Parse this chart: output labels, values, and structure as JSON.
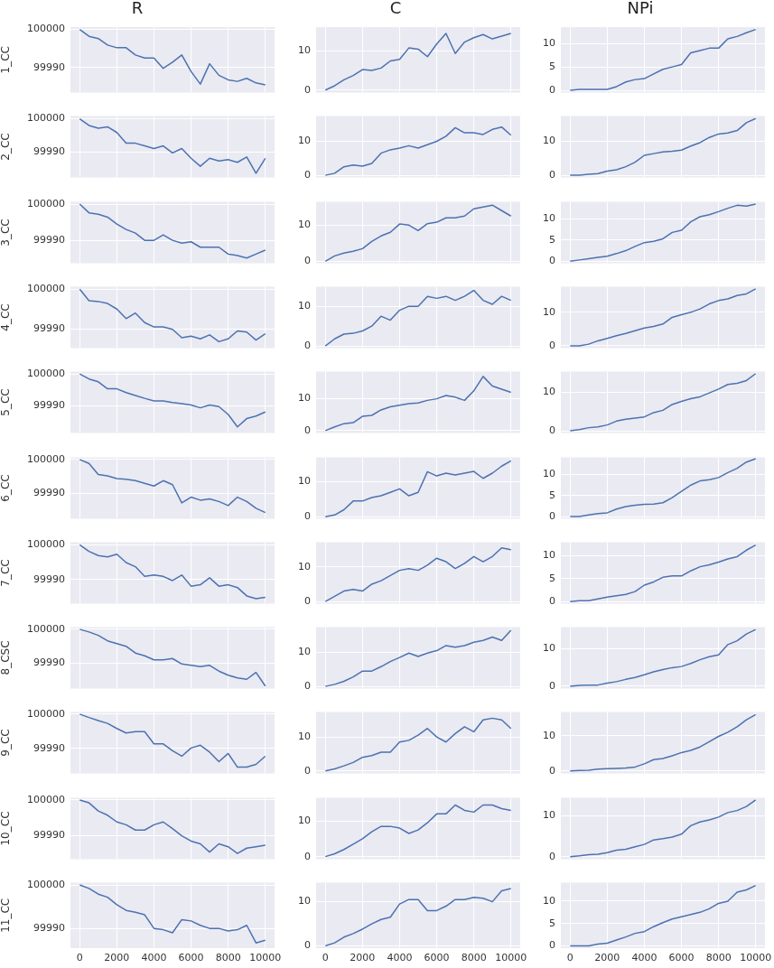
{
  "chart_data": [
    {
      "type": "line",
      "title": "R",
      "ylabel": "1_CC",
      "color": "#4c72b0",
      "x": [
        0,
        500,
        1000,
        1500,
        2000,
        2500,
        3000,
        3500,
        4000,
        4500,
        5000,
        5500,
        6000,
        6500,
        7000,
        7500,
        8000,
        8500,
        9000,
        9500,
        10000
      ],
      "values": [
        100000,
        99998.2,
        99997.6,
        99995.9,
        99995.2,
        99995.2,
        99993.3,
        99992.5,
        99992.5,
        99989.8,
        99991.4,
        99993.3,
        99989,
        99985.7,
        99991,
        99988,
        99986.8,
        99986.4,
        99987.2,
        99986,
        99985.5
      ],
      "xlim": [
        -500,
        10500
      ],
      "xticks": [
        0,
        2000,
        4000,
        6000,
        8000,
        10000
      ],
      "ylim": [
        99983.5,
        100000.6
      ],
      "yticks": [
        99990,
        100000
      ],
      "grid": true,
      "tick_labels": "y"
    },
    {
      "type": "line",
      "title": "C",
      "color": "#4c72b0",
      "x": [
        0,
        500,
        1000,
        1500,
        2000,
        2500,
        3000,
        3500,
        4000,
        4500,
        5000,
        5500,
        6000,
        6500,
        7000,
        7500,
        8000,
        8500,
        9000,
        9500,
        10000
      ],
      "values": [
        0,
        1.1,
        2.6,
        3.7,
        5.2,
        5,
        5.6,
        7.4,
        7.8,
        10.7,
        10.4,
        8.5,
        11.7,
        14.4,
        9.3,
        12.2,
        13.3,
        14.1,
        13,
        13.7,
        14.4
      ],
      "xlim": [
        -500,
        10500
      ],
      "xticks": [
        0,
        2000,
        4000,
        6000,
        8000,
        10000
      ],
      "ylim": [
        -0.6,
        16
      ],
      "yticks": [
        0,
        10
      ],
      "grid": true,
      "tick_labels": "y"
    },
    {
      "type": "line",
      "title": "NPi",
      "color": "#4c72b0",
      "x": [
        0,
        500,
        1000,
        1500,
        2000,
        2500,
        3000,
        3500,
        4000,
        4500,
        5000,
        5500,
        6000,
        6500,
        7000,
        7500,
        8000,
        8500,
        9000,
        9500,
        10000
      ],
      "values": [
        0,
        0.2,
        0.2,
        0.2,
        0.2,
        0.8,
        1.8,
        2.3,
        2.5,
        3.5,
        4.5,
        5,
        5.5,
        8,
        8.5,
        9,
        9,
        11,
        11.5,
        12.3,
        13
      ],
      "xlim": [
        -500,
        10500
      ],
      "xticks": [
        0,
        2000,
        4000,
        6000,
        8000,
        10000
      ],
      "ylim": [
        -0.45,
        13.5
      ],
      "yticks": [
        0,
        5,
        10
      ],
      "grid": true,
      "tick_labels": "y"
    },
    {
      "type": "line",
      "ylabel": "2_CC",
      "color": "#4c72b0",
      "x": [
        0,
        500,
        1000,
        1500,
        2000,
        2500,
        3000,
        3500,
        4000,
        4500,
        5000,
        5500,
        6000,
        6500,
        7000,
        7500,
        8000,
        8500,
        9000,
        9500,
        10000
      ],
      "values": [
        100000,
        99998,
        99997.2,
        99997.6,
        99995.9,
        99992.7,
        99992.7,
        99991.9,
        99991.1,
        99991.9,
        99989.8,
        99991.1,
        99988.2,
        99985.8,
        99988.2,
        99987.4,
        99987.8,
        99987,
        99988.6,
        99983.7,
        99988.2
      ],
      "xlim": [
        -500,
        10500
      ],
      "xticks": [
        0,
        2000,
        4000,
        6000,
        8000,
        10000
      ],
      "ylim": [
        99982.5,
        100000.8
      ],
      "yticks": [
        99990,
        100000
      ],
      "grid": true,
      "tick_labels": "y"
    },
    {
      "type": "line",
      "color": "#4c72b0",
      "x": [
        0,
        500,
        1000,
        1500,
        2000,
        2500,
        3000,
        3500,
        4000,
        4500,
        5000,
        5500,
        6000,
        6500,
        7000,
        7500,
        8000,
        8500,
        9000,
        9500,
        10000
      ],
      "values": [
        0,
        0.6,
        2.5,
        3,
        2.7,
        3.5,
        6.5,
        7.5,
        8,
        8.7,
        8,
        9,
        10,
        11.5,
        14,
        12.5,
        12.5,
        12,
        13.5,
        14.2,
        11.8
      ],
      "xlim": [
        -500,
        10500
      ],
      "xticks": [
        0,
        2000,
        4000,
        6000,
        8000,
        10000
      ],
      "ylim": [
        -0.6,
        17.4
      ],
      "yticks": [
        0,
        10
      ],
      "grid": true,
      "tick_labels": "y"
    },
    {
      "type": "line",
      "color": "#4c72b0",
      "x": [
        0,
        500,
        1000,
        1500,
        2000,
        2500,
        3000,
        3500,
        4000,
        4500,
        5000,
        5500,
        6000,
        6500,
        7000,
        7500,
        8000,
        8500,
        9000,
        9500,
        10000
      ],
      "values": [
        0,
        0,
        0.3,
        0.5,
        1.2,
        1.6,
        2.5,
        3.8,
        5.8,
        6.3,
        6.8,
        7,
        7.3,
        8.5,
        9.5,
        11,
        12,
        12.3,
        13,
        15.3,
        16.5
      ],
      "xlim": [
        -500,
        10500
      ],
      "xticks": [
        0,
        2000,
        4000,
        6000,
        8000,
        10000
      ],
      "ylim": [
        -0.6,
        17.2
      ],
      "yticks": [
        0,
        10
      ],
      "grid": true,
      "tick_labels": "y"
    },
    {
      "type": "line",
      "ylabel": "3_CC",
      "color": "#4c72b0",
      "x": [
        0,
        500,
        1000,
        1500,
        2000,
        2500,
        3000,
        3500,
        4000,
        4500,
        5000,
        5500,
        6000,
        6500,
        7000,
        7500,
        8000,
        8500,
        9000,
        9500,
        10000
      ],
      "values": [
        100000,
        99997.6,
        99997.2,
        99996.4,
        99994.5,
        99993,
        99992,
        99990,
        99990,
        99991.5,
        99990,
        99989.2,
        99989.6,
        99988.1,
        99988.1,
        99988.1,
        99986.2,
        99985.8,
        99985.1,
        99986.2,
        99987.3
      ],
      "xlim": [
        -500,
        10500
      ],
      "xticks": [
        0,
        2000,
        4000,
        6000,
        8000,
        10000
      ],
      "ylim": [
        99983.7,
        100000.6
      ],
      "yticks": [
        99990,
        100000
      ],
      "grid": true,
      "tick_labels": "y"
    },
    {
      "type": "line",
      "color": "#4c72b0",
      "x": [
        0,
        500,
        1000,
        1500,
        2000,
        2500,
        3000,
        3500,
        4000,
        4500,
        5000,
        5500,
        6000,
        6500,
        7000,
        7500,
        8000,
        8500,
        9000,
        9500,
        10000
      ],
      "values": [
        0,
        1.5,
        2.3,
        2.8,
        3.5,
        5.5,
        7,
        8,
        10.3,
        10,
        8.5,
        10.4,
        10.8,
        12,
        12,
        12.5,
        14.5,
        15,
        15.5,
        14,
        12.5
      ],
      "xlim": [
        -500,
        10500
      ],
      "xticks": [
        0,
        2000,
        4000,
        6000,
        8000,
        10000
      ],
      "ylim": [
        -0.5,
        16.4
      ],
      "yticks": [
        0,
        10
      ],
      "grid": true,
      "tick_labels": "y"
    },
    {
      "type": "line",
      "color": "#4c72b0",
      "x": [
        0,
        500,
        1000,
        1500,
        2000,
        2500,
        3000,
        3500,
        4000,
        4500,
        5000,
        5500,
        6000,
        6500,
        7000,
        7500,
        8000,
        8500,
        9000,
        9500,
        10000
      ],
      "values": [
        0,
        0.3,
        0.6,
        0.9,
        1.2,
        1.8,
        2.5,
        3.5,
        4.4,
        4.7,
        5.3,
        6.8,
        7.3,
        9.3,
        10.5,
        11,
        11.7,
        12.5,
        13.2,
        13,
        13.5
      ],
      "xlim": [
        -500,
        10500
      ],
      "xticks": [
        0,
        2000,
        4000,
        6000,
        8000,
        10000
      ],
      "ylim": [
        -0.45,
        14
      ],
      "yticks": [
        0,
        5,
        10
      ],
      "grid": true,
      "tick_labels": "y"
    },
    {
      "type": "line",
      "ylabel": "4_CC",
      "color": "#4c72b0",
      "x": [
        0,
        500,
        1000,
        1500,
        2000,
        2500,
        3000,
        3500,
        4000,
        4500,
        5000,
        5500,
        6000,
        6500,
        7000,
        7500,
        8000,
        8500,
        9000,
        9500,
        10000
      ],
      "values": [
        100000,
        99997.1,
        99996.9,
        99996.4,
        99995,
        99992.6,
        99994,
        99991.6,
        99990.5,
        99990.5,
        99989.9,
        99987.8,
        99988.2,
        99987.5,
        99988.5,
        99986.8,
        99987.5,
        99989.5,
        99989.2,
        99987.2,
        99988.8
      ],
      "xlim": [
        -500,
        10500
      ],
      "xticks": [
        0,
        2000,
        4000,
        6000,
        8000,
        10000
      ],
      "ylim": [
        99985.2,
        100000.6
      ],
      "yticks": [
        99990,
        100000
      ],
      "grid": true,
      "tick_labels": "y"
    },
    {
      "type": "line",
      "color": "#4c72b0",
      "x": [
        0,
        500,
        1000,
        1500,
        2000,
        2500,
        3000,
        3500,
        4000,
        4500,
        5000,
        5500,
        6000,
        6500,
        7000,
        7500,
        8000,
        8500,
        9000,
        9500,
        10000
      ],
      "values": [
        0,
        1.8,
        3,
        3.2,
        3.8,
        5,
        7.5,
        6.5,
        9,
        10,
        10,
        12.5,
        12,
        12.5,
        11.5,
        12.5,
        14,
        11.5,
        10.5,
        12.5,
        11.5
      ],
      "xlim": [
        -500,
        10500
      ],
      "xticks": [
        0,
        2000,
        4000,
        6000,
        8000,
        10000
      ],
      "ylim": [
        -0.5,
        14.9
      ],
      "yticks": [
        0,
        10
      ],
      "grid": true,
      "tick_labels": "y"
    },
    {
      "type": "line",
      "color": "#4c72b0",
      "x": [
        0,
        500,
        1000,
        1500,
        2000,
        2500,
        3000,
        3500,
        4000,
        4500,
        5000,
        5500,
        6000,
        6500,
        7000,
        7500,
        8000,
        8500,
        9000,
        9500,
        10000
      ],
      "values": [
        0,
        0,
        0.5,
        1.5,
        2.2,
        3,
        3.7,
        4.5,
        5.3,
        5.8,
        6.5,
        8.5,
        9.3,
        10,
        11,
        12.5,
        13.5,
        14,
        15,
        15.5,
        17
      ],
      "xlim": [
        -500,
        10500
      ],
      "xticks": [
        0,
        2000,
        4000,
        6000,
        8000,
        10000
      ],
      "ylim": [
        -0.65,
        17.6
      ],
      "yticks": [
        0,
        10
      ],
      "grid": true,
      "tick_labels": "y"
    },
    {
      "type": "line",
      "ylabel": "5_CC",
      "color": "#4c72b0",
      "x": [
        0,
        500,
        1000,
        1500,
        2000,
        2500,
        3000,
        3500,
        4000,
        4500,
        5000,
        5500,
        6000,
        6500,
        7000,
        7500,
        8000,
        8500,
        9000,
        9500,
        10000
      ],
      "values": [
        100000,
        99998.4,
        99997.5,
        99995.3,
        99995.3,
        99994.1,
        99993.2,
        99992.3,
        99991.5,
        99991.5,
        99991,
        99990.6,
        99990.2,
        99989.3,
        99990.2,
        99989.7,
        99987.2,
        99983.3,
        99985.9,
        99986.7,
        99988
      ],
      "xlim": [
        -500,
        10500
      ],
      "xticks": [
        0,
        2000,
        4000,
        6000,
        8000,
        10000
      ],
      "ylim": [
        99981.4,
        100000.7
      ],
      "yticks": [
        99990,
        100000
      ],
      "grid": true,
      "tick_labels": "y"
    },
    {
      "type": "line",
      "color": "#4c72b0",
      "x": [
        0,
        500,
        1000,
        1500,
        2000,
        2500,
        3000,
        3500,
        4000,
        4500,
        5000,
        5500,
        6000,
        6500,
        7000,
        7500,
        8000,
        8500,
        9000,
        9500,
        10000
      ],
      "values": [
        0,
        1.2,
        2.2,
        2.5,
        4.5,
        4.8,
        6.5,
        7.5,
        8,
        8.5,
        8.7,
        9.5,
        10,
        11,
        10.5,
        9.5,
        12.5,
        17,
        14,
        13,
        12
      ],
      "xlim": [
        -500,
        10500
      ],
      "xticks": [
        0,
        2000,
        4000,
        6000,
        8000,
        10000
      ],
      "ylim": [
        -0.7,
        18.5
      ],
      "yticks": [
        0,
        10
      ],
      "grid": true,
      "tick_labels": "y"
    },
    {
      "type": "line",
      "color": "#4c72b0",
      "x": [
        0,
        500,
        1000,
        1500,
        2000,
        2500,
        3000,
        3500,
        4000,
        4500,
        5000,
        5500,
        6000,
        6500,
        7000,
        7500,
        8000,
        8500,
        9000,
        9500,
        10000
      ],
      "values": [
        0,
        0.3,
        0.8,
        1,
        1.5,
        2.5,
        3,
        3.3,
        3.6,
        4.7,
        5.3,
        6.8,
        7.6,
        8.3,
        8.8,
        9.8,
        10.8,
        12,
        12.3,
        13,
        14.8
      ],
      "xlim": [
        -500,
        10500
      ],
      "xticks": [
        0,
        2000,
        4000,
        6000,
        8000,
        10000
      ],
      "ylim": [
        -0.55,
        15.3
      ],
      "yticks": [
        0,
        10
      ],
      "grid": true,
      "tick_labels": "y"
    },
    {
      "type": "line",
      "ylabel": "6_CC",
      "color": "#4c72b0",
      "x": [
        0,
        500,
        1000,
        1500,
        2000,
        2500,
        3000,
        3500,
        4000,
        4500,
        5000,
        5500,
        6000,
        6500,
        7000,
        7500,
        8000,
        8500,
        9000,
        9500,
        10000
      ],
      "values": [
        100000,
        99998.8,
        99995.5,
        99995.1,
        99994.3,
        99994.1,
        99993.7,
        99992.9,
        99992.1,
        99993.7,
        99992.5,
        99987.1,
        99988.8,
        99987.9,
        99988.3,
        99987.5,
        99986.3,
        99988.8,
        99987.5,
        99985.5,
        99984.2
      ],
      "xlim": [
        -500,
        10500
      ],
      "xticks": [
        0,
        2000,
        4000,
        6000,
        8000,
        10000
      ],
      "ylim": [
        99982.4,
        100000.6
      ],
      "yticks": [
        99990,
        100000
      ],
      "grid": true,
      "tick_labels": "y"
    },
    {
      "type": "line",
      "color": "#4c72b0",
      "x": [
        0,
        500,
        1000,
        1500,
        2000,
        2500,
        3000,
        3500,
        4000,
        4500,
        5000,
        5500,
        6000,
        6500,
        7000,
        7500,
        8000,
        8500,
        9000,
        9500,
        10000
      ],
      "values": [
        0,
        0.5,
        2,
        4.5,
        4.5,
        5.5,
        6,
        7,
        8,
        6,
        7,
        12.9,
        11.7,
        12.5,
        12,
        12.5,
        13,
        11,
        12.5,
        14.5,
        16
      ],
      "xlim": [
        -500,
        10500
      ],
      "xticks": [
        0,
        2000,
        4000,
        6000,
        8000,
        10000
      ],
      "ylim": [
        -0.56,
        17
      ],
      "yticks": [
        0,
        10
      ],
      "grid": true,
      "tick_labels": "y"
    },
    {
      "type": "line",
      "color": "#4c72b0",
      "x": [
        0,
        500,
        1000,
        1500,
        2000,
        2500,
        3000,
        3500,
        4000,
        4500,
        5000,
        5500,
        6000,
        6500,
        7000,
        7500,
        8000,
        8500,
        9000,
        9500,
        10000
      ],
      "values": [
        0,
        0,
        0.4,
        0.7,
        0.9,
        1.8,
        2.4,
        2.7,
        2.9,
        3,
        3.3,
        4.5,
        6,
        7.5,
        8.5,
        8.8,
        9.3,
        10.5,
        11.5,
        13,
        13.8
      ],
      "xlim": [
        -500,
        10500
      ],
      "xticks": [
        0,
        2000,
        4000,
        6000,
        8000,
        10000
      ],
      "ylim": [
        -0.5,
        14.1
      ],
      "yticks": [
        0,
        5,
        10
      ],
      "grid": true,
      "tick_labels": "y"
    },
    {
      "type": "line",
      "ylabel": "7_CC",
      "color": "#4c72b0",
      "x": [
        0,
        500,
        1000,
        1500,
        2000,
        2500,
        3000,
        3500,
        4000,
        4500,
        5000,
        5500,
        6000,
        6500,
        7000,
        7500,
        8000,
        8500,
        9000,
        9500,
        10000
      ],
      "values": [
        100000,
        99998.1,
        99996.9,
        99996.5,
        99997.3,
        99994.9,
        99993.7,
        99990.9,
        99991.3,
        99990.9,
        99989.7,
        99991.3,
        99988.1,
        99988.5,
        99990.5,
        99988.1,
        99988.5,
        99987.7,
        99985.3,
        99984.5,
        99984.9
      ],
      "xlim": [
        -500,
        10500
      ],
      "xticks": [
        0,
        2000,
        4000,
        6000,
        8000,
        10000
      ],
      "ylim": [
        99983.1,
        100000.7
      ],
      "yticks": [
        99990,
        100000
      ],
      "grid": true,
      "tick_labels": "y"
    },
    {
      "type": "line",
      "color": "#4c72b0",
      "x": [
        0,
        500,
        1000,
        1500,
        2000,
        2500,
        3000,
        3500,
        4000,
        4500,
        5000,
        5500,
        6000,
        6500,
        7000,
        7500,
        8000,
        8500,
        9000,
        9500,
        10000
      ],
      "values": [
        0,
        1.5,
        3,
        3.5,
        3,
        5,
        6,
        7.5,
        9,
        9.5,
        9,
        10.5,
        12.5,
        11.5,
        9.5,
        11,
        13,
        11.5,
        13,
        15.5,
        15
      ],
      "xlim": [
        -500,
        10500
      ],
      "xticks": [
        0,
        2000,
        4000,
        6000,
        8000,
        10000
      ],
      "ylim": [
        -0.6,
        17.1
      ],
      "yticks": [
        0,
        10
      ],
      "grid": true,
      "tick_labels": "y"
    },
    {
      "type": "line",
      "color": "#4c72b0",
      "x": [
        0,
        500,
        1000,
        1500,
        2000,
        2500,
        3000,
        3500,
        4000,
        4500,
        5000,
        5500,
        6000,
        6500,
        7000,
        7500,
        8000,
        8500,
        9000,
        9500,
        10000
      ],
      "values": [
        0,
        0.2,
        0.2,
        0.6,
        1,
        1.3,
        1.6,
        2.2,
        3.6,
        4.3,
        5.3,
        5.6,
        5.6,
        6.7,
        7.6,
        8,
        8.6,
        9.3,
        9.8,
        11.2,
        12.3
      ],
      "xlim": [
        -500,
        10500
      ],
      "xticks": [
        0,
        2000,
        4000,
        6000,
        8000,
        10000
      ],
      "ylim": [
        -0.4,
        12.9
      ],
      "yticks": [
        0,
        5,
        10
      ],
      "grid": true,
      "tick_labels": "y"
    },
    {
      "type": "line",
      "ylabel": "8_CSC",
      "color": "#4c72b0",
      "x": [
        0,
        500,
        1000,
        1500,
        2000,
        2500,
        3000,
        3500,
        4000,
        4500,
        5000,
        5500,
        6000,
        6500,
        7000,
        7500,
        8000,
        8500,
        9000,
        9500,
        10000
      ],
      "values": [
        100000,
        99999.2,
        99998.2,
        99996.6,
        99995.8,
        99995,
        99993,
        99992.2,
        99991,
        99991,
        99991.4,
        99989.8,
        99989.4,
        99989,
        99989.4,
        99987.7,
        99986.5,
        99985.7,
        99985.3,
        99987.3,
        99983.3
      ],
      "xlim": [
        -500,
        10500
      ],
      "xticks": [
        0,
        2000,
        4000,
        6000,
        8000,
        10000
      ],
      "ylim": [
        99982.6,
        100000.6
      ],
      "yticks": [
        99990,
        100000
      ],
      "grid": true,
      "tick_labels": "y"
    },
    {
      "type": "line",
      "color": "#4c72b0",
      "x": [
        0,
        500,
        1000,
        1500,
        2000,
        2500,
        3000,
        3500,
        4000,
        4500,
        5000,
        5500,
        6000,
        6500,
        7000,
        7500,
        8000,
        8500,
        9000,
        9500,
        10000
      ],
      "values": [
        0,
        0.6,
        1.5,
        2.8,
        4.5,
        4.5,
        5.8,
        7.3,
        8.5,
        9.8,
        8.8,
        9.8,
        10.5,
        12,
        11.5,
        12,
        13,
        13.5,
        14.5,
        13.5,
        16.5
      ],
      "xlim": [
        -500,
        10500
      ],
      "xticks": [
        0,
        2000,
        4000,
        6000,
        8000,
        10000
      ],
      "ylim": [
        -0.6,
        17.4
      ],
      "yticks": [
        0,
        10
      ],
      "grid": true,
      "tick_labels": "y"
    },
    {
      "type": "line",
      "color": "#4c72b0",
      "x": [
        0,
        500,
        1000,
        1500,
        2000,
        2500,
        3000,
        3500,
        4000,
        4500,
        5000,
        5500,
        6000,
        6500,
        7000,
        7500,
        8000,
        8500,
        9000,
        9500,
        10000
      ],
      "values": [
        0,
        0.2,
        0.3,
        0.3,
        0.8,
        1.2,
        1.8,
        2.3,
        3,
        3.8,
        4.4,
        4.9,
        5.2,
        6,
        7,
        7.8,
        8.3,
        11,
        12,
        13.8,
        15
      ],
      "xlim": [
        -500,
        10500
      ],
      "xticks": [
        0,
        2000,
        4000,
        6000,
        8000,
        10000
      ],
      "ylim": [
        -0.6,
        15.6
      ],
      "yticks": [
        0,
        10
      ],
      "grid": true,
      "tick_labels": "y"
    },
    {
      "type": "line",
      "ylabel": "9_CC",
      "color": "#4c72b0",
      "x": [
        0,
        500,
        1000,
        1500,
        2000,
        2500,
        3000,
        3500,
        4000,
        4500,
        5000,
        5500,
        6000,
        6500,
        7000,
        7500,
        8000,
        8500,
        9000,
        9500,
        10000
      ],
      "values": [
        100000,
        99999,
        99998.1,
        99997.3,
        99995.8,
        99994.5,
        99994.9,
        99994.9,
        99991.3,
        99991.3,
        99989.3,
        99987.7,
        99990.1,
        99990.9,
        99988.9,
        99986.1,
        99988.5,
        99984.5,
        99984.5,
        99985.3,
        99987.7
      ],
      "xlim": [
        -500,
        10500
      ],
      "xticks": [
        0,
        2000,
        4000,
        6000,
        8000,
        10000
      ],
      "ylim": [
        99982.7,
        100000.6
      ],
      "yticks": [
        99990,
        100000
      ],
      "grid": true,
      "tick_labels": "y"
    },
    {
      "type": "line",
      "color": "#4c72b0",
      "x": [
        0,
        500,
        1000,
        1500,
        2000,
        2500,
        3000,
        3500,
        4000,
        4500,
        5000,
        5500,
        6000,
        6500,
        7000,
        7500,
        8000,
        8500,
        9000,
        9500,
        10000
      ],
      "values": [
        0,
        0.6,
        1.5,
        2.5,
        4,
        4.5,
        5.5,
        5.5,
        8.5,
        9,
        10.5,
        12.5,
        10,
        8.5,
        11,
        13,
        11.5,
        15,
        15.5,
        15,
        12.5
      ],
      "xlim": [
        -500,
        10500
      ],
      "xticks": [
        0,
        2000,
        4000,
        6000,
        8000,
        10000
      ],
      "ylim": [
        -0.7,
        17.3
      ],
      "yticks": [
        0,
        10
      ],
      "grid": true,
      "tick_labels": "y"
    },
    {
      "type": "line",
      "color": "#4c72b0",
      "x": [
        0,
        500,
        1000,
        1500,
        2000,
        2500,
        3000,
        3500,
        4000,
        4500,
        5000,
        5500,
        6000,
        6500,
        7000,
        7500,
        8000,
        8500,
        9000,
        9500,
        10000
      ],
      "values": [
        0,
        0.1,
        0.2,
        0.5,
        0.6,
        0.7,
        0.8,
        1.1,
        2,
        3.2,
        3.5,
        4.3,
        5.2,
        5.8,
        6.8,
        8.3,
        9.8,
        11,
        12.5,
        14.5,
        16
      ],
      "xlim": [
        -500,
        10500
      ],
      "xticks": [
        0,
        2000,
        4000,
        6000,
        8000,
        10000
      ],
      "ylim": [
        -0.7,
        16.7
      ],
      "yticks": [
        0,
        10
      ],
      "grid": true,
      "tick_labels": "y"
    },
    {
      "type": "line",
      "ylabel": "10_CC",
      "color": "#4c72b0",
      "x": [
        0,
        500,
        1000,
        1500,
        2000,
        2500,
        3000,
        3500,
        4000,
        4500,
        5000,
        5500,
        6000,
        6500,
        7000,
        7500,
        8000,
        8500,
        9000,
        9500,
        10000
      ],
      "values": [
        100000,
        99999.2,
        99996.9,
        99995.7,
        99993.8,
        99993,
        99991.5,
        99991.5,
        99993,
        99993.8,
        99991.9,
        99989.9,
        99988.4,
        99987.6,
        99985.3,
        99987.6,
        99986.8,
        99984.9,
        99986.4,
        99986.8,
        99987.2
      ],
      "xlim": [
        -500,
        10500
      ],
      "xticks": [
        0,
        2000,
        4000,
        6000,
        8000,
        10000
      ],
      "ylim": [
        99983.3,
        100000.6
      ],
      "yticks": [
        99990,
        100000
      ],
      "grid": true,
      "tick_labels": "y"
    },
    {
      "type": "line",
      "color": "#4c72b0",
      "x": [
        0,
        500,
        1000,
        1500,
        2000,
        2500,
        3000,
        3500,
        4000,
        4500,
        5000,
        5500,
        6000,
        6500,
        7000,
        7500,
        8000,
        8500,
        9000,
        9500,
        10000
      ],
      "values": [
        0,
        0.8,
        2,
        3.5,
        5,
        7,
        8.5,
        8.5,
        8,
        6.5,
        7.5,
        9.5,
        12,
        12,
        14.5,
        13,
        12.5,
        14.5,
        14.5,
        13.5,
        13
      ],
      "xlim": [
        -500,
        10500
      ],
      "xticks": [
        0,
        2000,
        4000,
        6000,
        8000,
        10000
      ],
      "ylim": [
        -0.7,
        16.5
      ],
      "yticks": [
        0,
        10
      ],
      "grid": true,
      "tick_labels": "y"
    },
    {
      "type": "line",
      "color": "#4c72b0",
      "x": [
        0,
        500,
        1000,
        1500,
        2000,
        2500,
        3000,
        3500,
        4000,
        4500,
        5000,
        5500,
        6000,
        6500,
        7000,
        7500,
        8000,
        8500,
        9000,
        9500,
        10000
      ],
      "values": [
        0,
        0.2,
        0.5,
        0.6,
        1,
        1.6,
        1.8,
        2.4,
        3,
        4.1,
        4.4,
        4.8,
        5.5,
        7.6,
        8.5,
        9,
        9.7,
        10.8,
        11.3,
        12.3,
        13.9
      ],
      "xlim": [
        -500,
        10500
      ],
      "xticks": [
        0,
        2000,
        4000,
        6000,
        8000,
        10000
      ],
      "ylim": [
        -0.6,
        14.4
      ],
      "yticks": [
        0,
        10
      ],
      "grid": true,
      "tick_labels": "y"
    },
    {
      "type": "line",
      "ylabel": "11_CC",
      "color": "#4c72b0",
      "x": [
        0,
        500,
        1000,
        1500,
        2000,
        2500,
        3000,
        3500,
        4000,
        4500,
        5000,
        5500,
        6000,
        6500,
        7000,
        7500,
        8000,
        8500,
        9000,
        9500,
        10000
      ],
      "values": [
        100000,
        99999.2,
        99997.9,
        99997.2,
        99995.5,
        99994.2,
        99993.8,
        99993.2,
        99990.1,
        99989.8,
        99989.1,
        99992.1,
        99991.8,
        99990.8,
        99990.1,
        99990.1,
        99989.5,
        99989.8,
        99990.8,
        99986.8,
        99987.4
      ],
      "xlim": [
        -500,
        10500
      ],
      "xticks": [
        0,
        2000,
        4000,
        6000,
        8000,
        10000
      ],
      "ylim": [
        99985.6,
        100000.5
      ],
      "yticks": [
        99990,
        100000
      ],
      "grid": true
    },
    {
      "type": "line",
      "color": "#4c72b0",
      "x": [
        0,
        500,
        1000,
        1500,
        2000,
        2500,
        3000,
        3500,
        4000,
        4500,
        5000,
        5500,
        6000,
        6500,
        7000,
        7500,
        8000,
        8500,
        9000,
        9500,
        10000
      ],
      "values": [
        0,
        0.7,
        2,
        2.8,
        3.8,
        5,
        6,
        6.5,
        9.5,
        10.5,
        10.5,
        8,
        8,
        9,
        10.5,
        10.5,
        11,
        10.8,
        10,
        12.5,
        13
      ],
      "xlim": [
        -500,
        10500
      ],
      "xticks": [
        0,
        2000,
        4000,
        6000,
        8000,
        10000
      ],
      "ylim": [
        -0.5,
        14.3
      ],
      "yticks": [
        0,
        10
      ],
      "grid": true
    },
    {
      "type": "line",
      "color": "#4c72b0",
      "x": [
        0,
        500,
        1000,
        1500,
        2000,
        2500,
        3000,
        3500,
        4000,
        4500,
        5000,
        5500,
        6000,
        6500,
        7000,
        7500,
        8000,
        8500,
        9000,
        9500,
        10000
      ],
      "values": [
        0,
        0,
        0,
        0.4,
        0.6,
        1.3,
        2,
        2.8,
        3.2,
        4.3,
        5.2,
        6,
        6.5,
        7,
        7.5,
        8.3,
        9.5,
        10,
        12,
        12.5,
        13.5
      ],
      "xlim": [
        -500,
        10500
      ],
      "xticks": [
        0,
        2000,
        4000,
        6000,
        8000,
        10000
      ],
      "ylim": [
        -0.5,
        14.1
      ],
      "yticks": [
        0,
        5,
        10
      ],
      "grid": true
    }
  ]
}
